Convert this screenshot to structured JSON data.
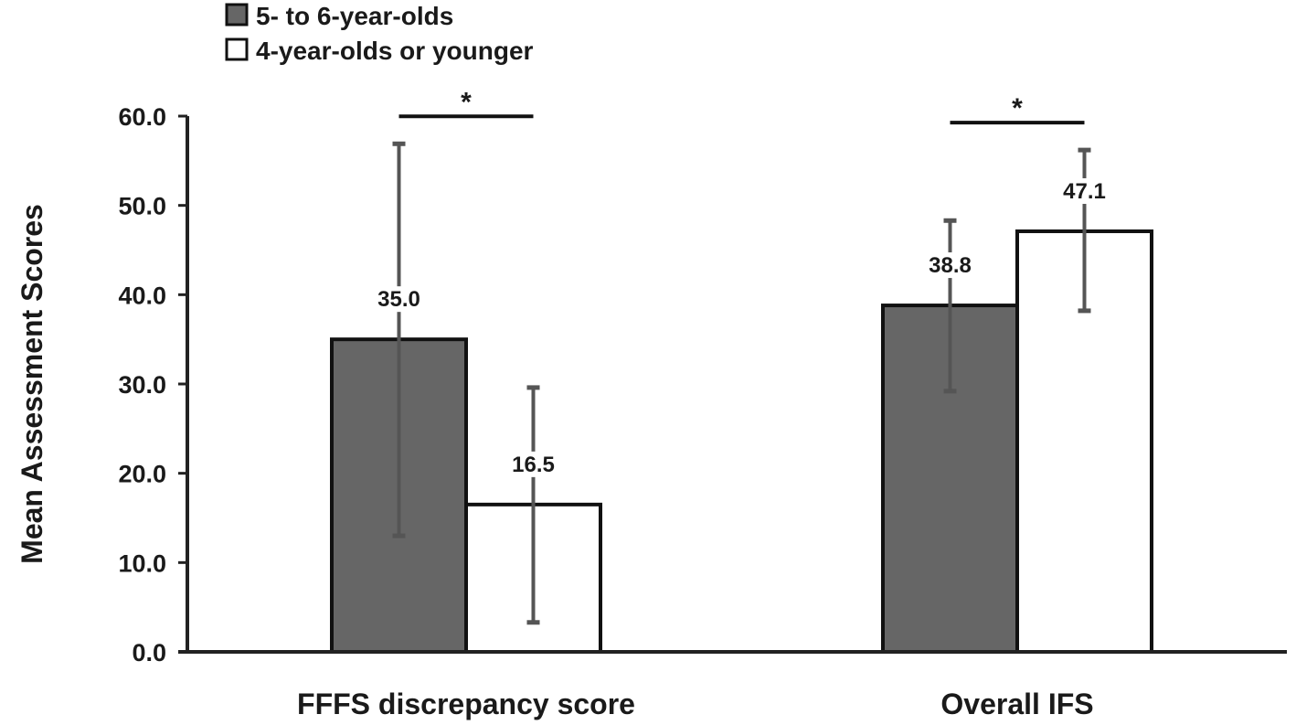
{
  "chart_data": {
    "type": "bar",
    "categories": [
      "FFFS discrepancy score",
      "Overall IFS"
    ],
    "series": [
      {
        "name": "5- to 6-year-olds",
        "color": "#666666",
        "values": [
          35.0,
          38.8
        ],
        "error_high": [
          56.9,
          48.3
        ],
        "error_low": [
          13.0,
          29.2
        ]
      },
      {
        "name": "4-year-olds or younger",
        "color": "#ffffff",
        "values": [
          16.5,
          47.1
        ],
        "error_high": [
          29.6,
          56.2
        ],
        "error_low": [
          3.3,
          38.2
        ]
      }
    ],
    "data_labels": [
      [
        "35.0",
        "38.8"
      ],
      [
        "16.5",
        "47.1"
      ]
    ],
    "ylabel": "Mean Assessment Scores",
    "xlabel": "",
    "ylim": [
      0,
      60
    ],
    "y_ticks": [
      "0.0",
      "10.0",
      "20.0",
      "30.0",
      "40.0",
      "50.0",
      "60.0"
    ],
    "significance": [
      {
        "category": "FFFS discrepancy score",
        "label": "*"
      },
      {
        "category": "Overall IFS",
        "label": "*"
      }
    ],
    "legend_position": "top-left",
    "grid": false
  }
}
